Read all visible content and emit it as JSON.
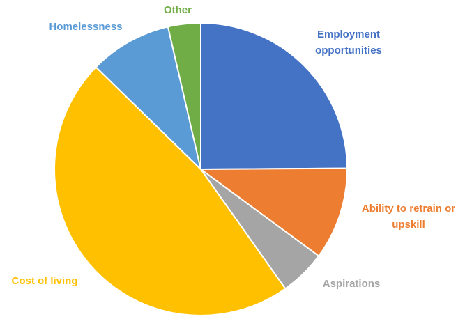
{
  "chart_data": {
    "type": "pie",
    "title": "",
    "start": "12 o'clock",
    "direction": "clockwise",
    "slices": [
      {
        "label": "Employment opportunities",
        "value": 24.9,
        "color": "#4472C4"
      },
      {
        "label": "Ability to retrain or upskill",
        "value": 10.2,
        "color": "#ED7D31"
      },
      {
        "label": "Aspirations",
        "value": 5.1,
        "color": "#A5A5A5"
      },
      {
        "label": "Cost of living",
        "value": 47.1,
        "color": "#FFC000"
      },
      {
        "label": "Homelessness",
        "value": 9.1,
        "color": "#5B9BD5"
      },
      {
        "label": "Other",
        "value": 3.6,
        "color": "#70AD47"
      }
    ]
  }
}
